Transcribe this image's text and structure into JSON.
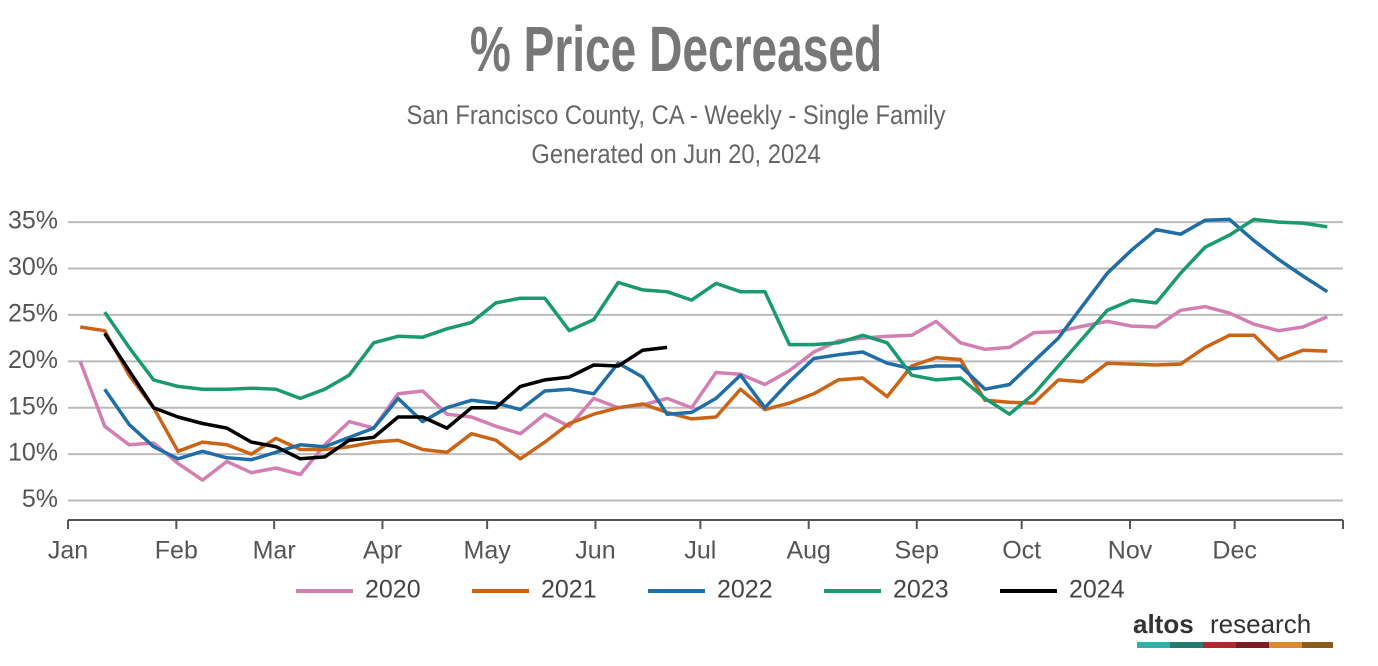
{
  "chart_data": {
    "type": "line",
    "title": "% Price Decreased",
    "subtitle": "San Francisco County, CA - Weekly - Single Family",
    "generated": "Generated on Jun 20, 2024",
    "x": [
      0.5,
      1.5,
      2.5,
      3.5,
      4.5,
      5.5,
      6.5,
      7.5,
      8.5,
      9.5,
      10.5,
      11.5,
      12.5,
      13.5,
      14.5,
      15.5,
      16.5,
      17.5,
      18.5,
      19.5,
      20.5,
      21.5,
      22.5,
      23.5,
      24.5,
      25.5,
      26.5,
      27.5,
      28.5,
      29.5,
      30.5,
      31.5,
      32.5,
      33.5,
      34.5,
      35.5,
      36.5,
      37.5,
      38.5,
      39.5,
      40.5,
      41.5,
      42.5,
      43.5,
      44.5,
      45.5,
      46.5,
      47.5,
      48.5,
      49.5,
      50.5,
      51.5
    ],
    "series": [
      {
        "name": "2020",
        "color": "#d47fb4",
        "values": [
          20,
          13,
          11,
          11.2,
          9,
          7.2,
          9.2,
          8,
          8.5,
          7.8,
          11,
          13.5,
          12.8,
          16.5,
          16.8,
          14.3,
          14,
          13,
          12.2,
          14.3,
          13,
          16,
          15,
          15.3,
          16,
          15,
          18.8,
          18.6,
          17.5,
          19,
          21,
          22.2,
          22.5,
          22.7,
          22.8,
          24.3,
          22,
          21.3,
          21.5,
          23.1,
          23.2,
          23.8,
          24.3,
          23.8,
          23.7,
          25.5,
          25.9,
          25.2,
          24,
          23.3,
          23.7,
          24.8
        ]
      },
      {
        "name": "2021",
        "color": "#cc6416",
        "values": [
          23.7,
          23.3,
          18.5,
          15,
          10.3,
          11.3,
          11,
          10,
          11.7,
          10.5,
          10.5,
          10.8,
          11.3,
          11.5,
          10.5,
          10.2,
          12.2,
          11.5,
          9.5,
          11.3,
          13.3,
          14.3,
          15,
          15.4,
          14.5,
          13.8,
          14,
          17,
          14.8,
          15.5,
          16.5,
          18,
          18.2,
          16.2,
          19.5,
          20.4,
          20.2,
          15.8,
          15.6,
          15.5,
          18,
          17.8,
          19.8,
          19.7,
          19.6,
          19.7,
          21.5,
          22.8,
          22.8,
          20.2,
          21.2,
          21.1
        ]
      },
      {
        "name": "2022",
        "color": "#1f6ea6",
        "values": [
          null,
          17,
          13.2,
          10.8,
          9.5,
          10.3,
          9.6,
          9.4,
          10.2,
          11,
          10.8,
          11.8,
          12.8,
          16,
          13.5,
          15,
          15.8,
          15.5,
          14.8,
          16.8,
          17,
          16.5,
          19.8,
          18.3,
          14.3,
          14.5,
          16,
          18.5,
          15,
          17.8,
          20.3,
          20.7,
          21,
          19.8,
          19.2,
          19.5,
          19.5,
          17,
          17.5,
          20,
          22.5,
          26,
          29.5,
          32,
          34.2,
          33.7,
          35.2,
          35.3,
          33,
          31,
          29.2,
          27.5
        ]
      },
      {
        "name": "2023",
        "color": "#1a9a70",
        "values": [
          null,
          25.3,
          21.5,
          18,
          17.3,
          17,
          17,
          17.1,
          17,
          16,
          17,
          18.5,
          22,
          22.7,
          22.6,
          23.5,
          24.2,
          26.3,
          26.8,
          26.8,
          23.3,
          24.5,
          28.5,
          27.7,
          27.5,
          26.6,
          28.4,
          27.5,
          27.5,
          21.8,
          21.8,
          22,
          22.8,
          22,
          18.5,
          18,
          18.2,
          16,
          14.3,
          16.5,
          19.5,
          22.5,
          25.5,
          26.6,
          26.3,
          29.5,
          32.3,
          33.6,
          35.3,
          35,
          34.9,
          34.5
        ]
      },
      {
        "name": "2024",
        "color": "#000000",
        "values": [
          null,
          23,
          19,
          15,
          14,
          13.3,
          12.8,
          11.3,
          10.8,
          9.5,
          9.7,
          11.5,
          11.8,
          14,
          14,
          12.8,
          15,
          15,
          17.3,
          18,
          18.3,
          19.6,
          19.5,
          21.2,
          21.5,
          null,
          null,
          null,
          null,
          null,
          null,
          null,
          null,
          null,
          null,
          null,
          null,
          null,
          null,
          null,
          null,
          null,
          null,
          null,
          null,
          null,
          null,
          null,
          null,
          null,
          null,
          null
        ]
      }
    ],
    "xlim": [
      0,
      52.14
    ],
    "xticks": [
      {
        "value": 0,
        "label": "Jan"
      },
      {
        "value": 4.43,
        "label": "Feb"
      },
      {
        "value": 8.43,
        "label": "Mar"
      },
      {
        "value": 12.86,
        "label": "Apr"
      },
      {
        "value": 17.14,
        "label": "May"
      },
      {
        "value": 21.57,
        "label": "Jun"
      },
      {
        "value": 25.86,
        "label": "Jul"
      },
      {
        "value": 30.29,
        "label": "Aug"
      },
      {
        "value": 34.71,
        "label": "Sep"
      },
      {
        "value": 39,
        "label": "Oct"
      },
      {
        "value": 43.43,
        "label": "Nov"
      },
      {
        "value": 47.71,
        "label": "Dec"
      },
      {
        "value": 52.14,
        "label": ""
      }
    ],
    "ylim": [
      2.9,
      36.2
    ],
    "yticks": [
      {
        "value": 5,
        "label": "5%"
      },
      {
        "value": 10,
        "label": "10%"
      },
      {
        "value": 15,
        "label": "15%"
      },
      {
        "value": 20,
        "label": "20%"
      },
      {
        "value": 25,
        "label": "25%"
      },
      {
        "value": 30,
        "label": "30%"
      },
      {
        "value": 35,
        "label": "35%"
      }
    ],
    "grid": true,
    "legend": "bottom"
  },
  "logo": {
    "brand": "altos",
    "suffix": "research"
  }
}
